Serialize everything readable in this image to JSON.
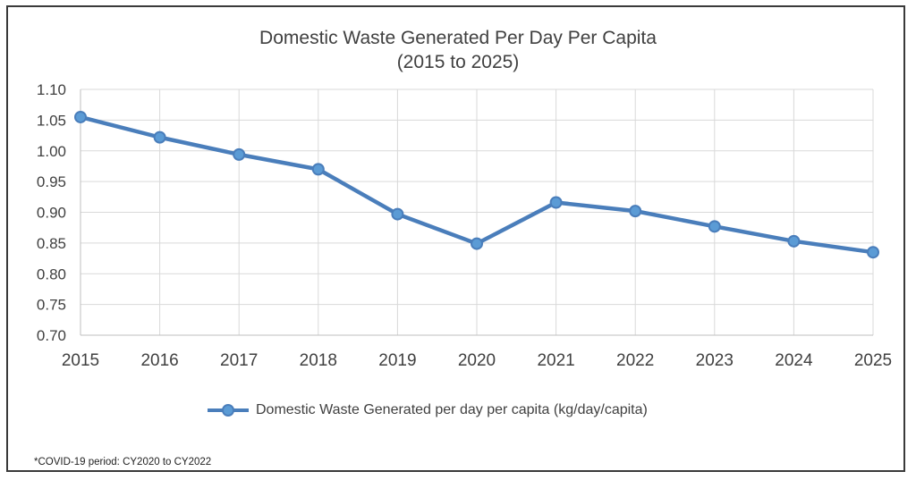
{
  "chart_data": {
    "type": "line",
    "title": "Domestic Waste Generated Per Day Per Capita",
    "subtitle": "(2015 to 2025)",
    "x": [
      "2015",
      "2016",
      "2017",
      "2018",
      "2019",
      "2020",
      "2021",
      "2022",
      "2023",
      "2024",
      "2025"
    ],
    "series": [
      {
        "name": "Domestic Waste Generated per day per capita (kg/day/capita)",
        "values": [
          1.055,
          1.022,
          0.994,
          0.97,
          0.897,
          0.849,
          0.916,
          0.902,
          0.877,
          0.853,
          0.835
        ],
        "color": "#4a7ebb"
      }
    ],
    "ylim": [
      0.7,
      1.1
    ],
    "yticks": [
      "0.70",
      "0.75",
      "0.80",
      "0.85",
      "0.90",
      "0.95",
      "1.00",
      "1.05",
      "1.10"
    ],
    "grid": true,
    "legend_position": "bottom",
    "footnote": "*COVID-19 period: CY2020 to CY2022"
  }
}
